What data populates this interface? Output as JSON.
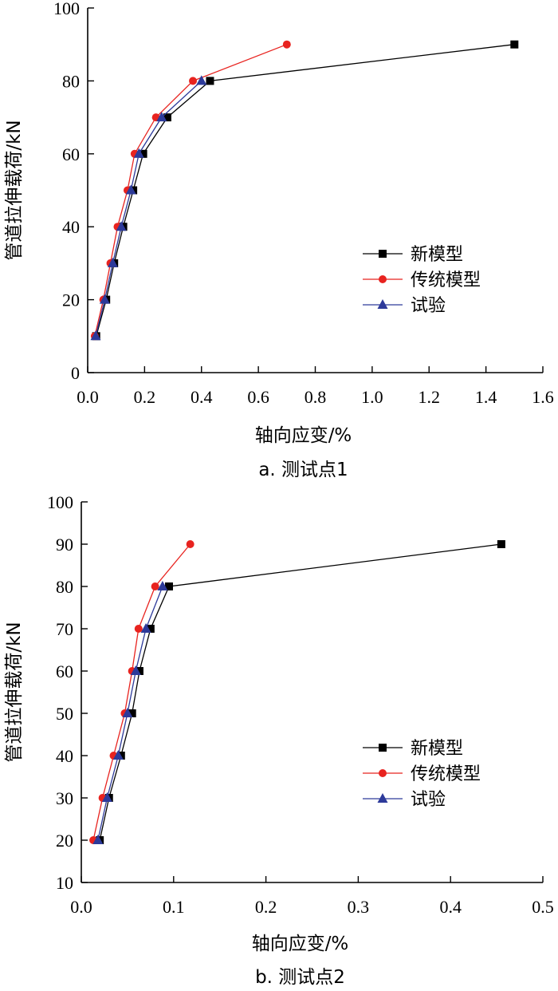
{
  "series_colors": {
    "new_model": "#000000",
    "traditional_model": "#e8231f",
    "test": "#2d3a9a"
  },
  "chart_data": [
    {
      "type": "line",
      "caption": "a. 测试点1",
      "xlabel": "轴向应变/%",
      "ylabel": "管道拉伸载荷/kN",
      "xlim": [
        0,
        1.6
      ],
      "ylim": [
        0,
        100
      ],
      "xticks": [
        0,
        0.2,
        0.4,
        0.6,
        0.8,
        1.0,
        1.2,
        1.4,
        1.6
      ],
      "xtick_labels": [
        "0.0",
        "0.2",
        "0.4",
        "0.6",
        "0.8",
        "1.0",
        "1.2",
        "1.4",
        "1.6"
      ],
      "yticks": [
        0,
        20,
        40,
        60,
        80,
        100
      ],
      "ytick_labels": [
        "0",
        "20",
        "40",
        "60",
        "80",
        "100"
      ],
      "legend": [
        "新模型",
        "传统模型",
        "试验"
      ],
      "legend_position": "center-right",
      "series": [
        {
          "name": "新模型",
          "key": "new_model",
          "marker": "square",
          "x": [
            0.03,
            0.065,
            0.093,
            0.125,
            0.16,
            0.195,
            0.28,
            0.43,
            1.5
          ],
          "y": [
            10,
            20,
            30,
            40,
            50,
            60,
            70,
            80,
            90
          ]
        },
        {
          "name": "传统模型",
          "key": "traditional_model",
          "marker": "circle",
          "x": [
            0.025,
            0.055,
            0.08,
            0.105,
            0.14,
            0.165,
            0.24,
            0.37,
            0.7
          ],
          "y": [
            10,
            20,
            30,
            40,
            50,
            60,
            70,
            80,
            90
          ]
        },
        {
          "name": "试验",
          "key": "test",
          "marker": "triangle",
          "x": [
            0.028,
            0.06,
            0.088,
            0.118,
            0.152,
            0.18,
            0.26,
            0.4
          ],
          "y": [
            10,
            20,
            30,
            40,
            50,
            60,
            70,
            80
          ]
        }
      ]
    },
    {
      "type": "line",
      "caption": "b. 测试点2",
      "xlabel": "轴向应变/%",
      "ylabel": "管道拉伸载荷/kN",
      "xlim": [
        0,
        0.5
      ],
      "ylim": [
        10,
        100
      ],
      "xticks": [
        0,
        0.1,
        0.2,
        0.3,
        0.4,
        0.5
      ],
      "xtick_labels": [
        "0.0",
        "0.1",
        "0.2",
        "0.3",
        "0.4",
        "0.5"
      ],
      "yticks": [
        10,
        20,
        30,
        40,
        50,
        60,
        70,
        80,
        90,
        100
      ],
      "ytick_labels": [
        "10",
        "20",
        "30",
        "40",
        "50",
        "60",
        "70",
        "80",
        "90",
        "100"
      ],
      "legend": [
        "新模型",
        "传统模型",
        "试验"
      ],
      "legend_position": "center-right",
      "series": [
        {
          "name": "新模型",
          "key": "new_model",
          "marker": "square",
          "x": [
            0.02,
            0.03,
            0.043,
            0.055,
            0.063,
            0.075,
            0.095,
            0.455
          ],
          "y": [
            20,
            30,
            40,
            50,
            60,
            70,
            80,
            90
          ]
        },
        {
          "name": "传统模型",
          "key": "traditional_model",
          "marker": "circle",
          "x": [
            0.013,
            0.023,
            0.035,
            0.047,
            0.055,
            0.062,
            0.08,
            0.118
          ],
          "y": [
            20,
            30,
            40,
            50,
            60,
            70,
            80,
            90
          ]
        },
        {
          "name": "试验",
          "key": "test",
          "marker": "triangle",
          "x": [
            0.018,
            0.028,
            0.04,
            0.05,
            0.059,
            0.07,
            0.088
          ],
          "y": [
            20,
            30,
            40,
            50,
            60,
            70,
            80
          ]
        }
      ]
    }
  ]
}
